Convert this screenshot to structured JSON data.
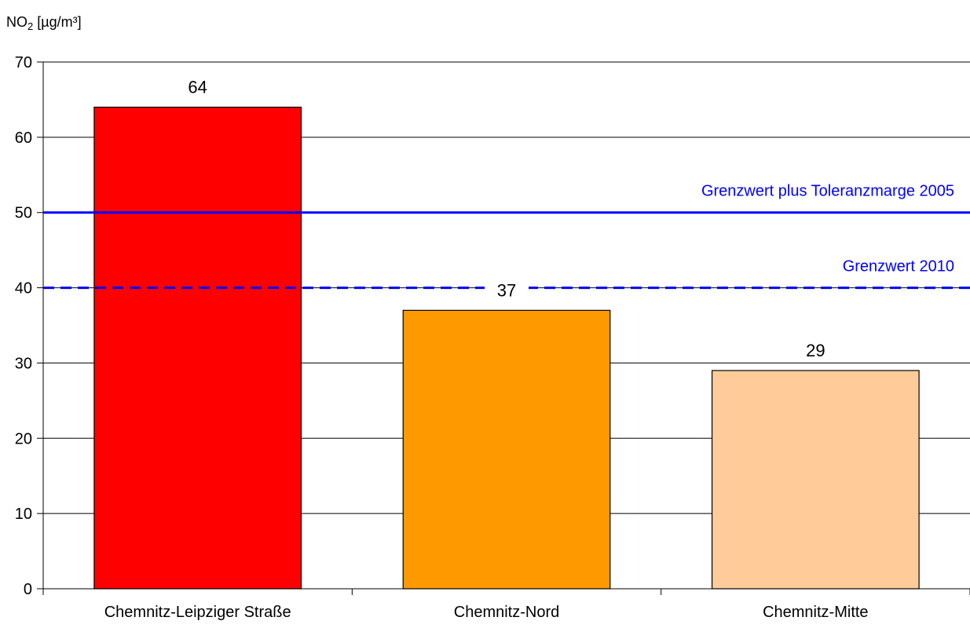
{
  "chart_data": {
    "type": "bar",
    "title": "",
    "ylabel": {
      "main": "NO",
      "subscript": "2",
      "unit": " [µg/m³]"
    },
    "xlabel": "",
    "categories": [
      "Chemnitz-Leipziger Straße",
      "Chemnitz-Nord",
      "Chemnitz-Mitte"
    ],
    "values": [
      64,
      37,
      29
    ],
    "value_labels": [
      "64",
      "37",
      "29"
    ],
    "bar_colors": [
      "#ff0000",
      "#ff9900",
      "#ffcc99"
    ],
    "ylim": [
      0,
      70
    ],
    "y_ticks": [
      0,
      10,
      20,
      30,
      40,
      50,
      60,
      70
    ],
    "y_tick_labels": [
      "0",
      "10",
      "20",
      "30",
      "40",
      "50",
      "60",
      "70"
    ],
    "grid": true,
    "reference_lines": [
      {
        "label": "Grenzwert plus Toleranzmarge 2005",
        "value": 50,
        "style": "solid",
        "color": "#0000ff"
      },
      {
        "label": "Grenzwert 2010",
        "value": 40,
        "style": "dashed",
        "color": "#0000ff"
      }
    ]
  }
}
